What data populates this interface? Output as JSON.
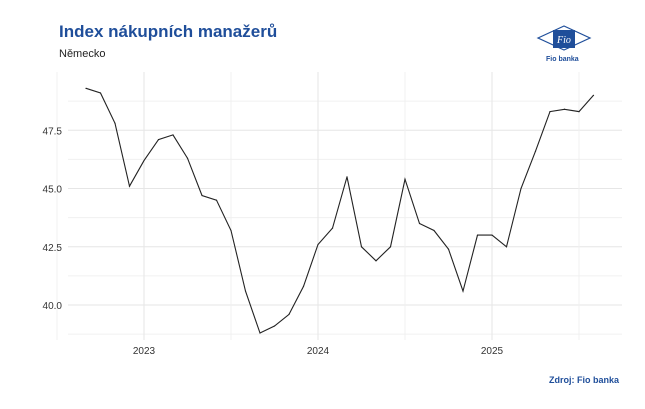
{
  "header": {
    "title": "Index nákupních manažerů",
    "subtitle": "Německo"
  },
  "logo": {
    "icon": "fio-banka-logo",
    "text": "Fio banka",
    "mark_text": "Fio"
  },
  "source": "Zdroj: Fio banka",
  "colors": {
    "title": "#1f4e9a",
    "line": "#222222",
    "grid": "#e6e6e6"
  },
  "chart_data": {
    "type": "line",
    "title": "Index nákupních manažerů",
    "subtitle": "Německo",
    "xlabel": "",
    "ylabel": "",
    "x_ticks": [
      "2023",
      "2024",
      "2025"
    ],
    "y_ticks": [
      "40.0",
      "42.5",
      "45.0",
      "47.5"
    ],
    "ylim": [
      38.5,
      50.0
    ],
    "grid": true,
    "series": [
      {
        "values": [
          49.3,
          49.1,
          47.8,
          45.1,
          46.2,
          47.1,
          47.3,
          46.3,
          44.7,
          44.5,
          43.2,
          40.6,
          38.8,
          39.1,
          39.6,
          40.8,
          42.6,
          43.3,
          45.5,
          42.5,
          41.9,
          42.5,
          45.4,
          43.5,
          43.2,
          42.4,
          40.6,
          43.0,
          43.0,
          42.5,
          45.0,
          46.6,
          48.3,
          48.4,
          48.3,
          49.0
        ]
      }
    ]
  }
}
